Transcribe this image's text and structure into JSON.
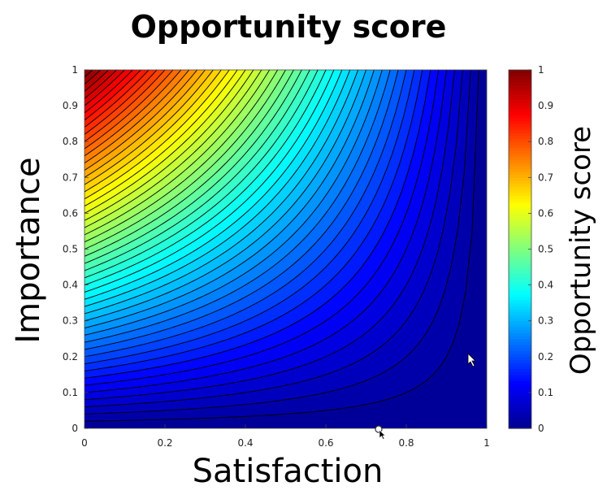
{
  "chart_data": {
    "type": "heatmap",
    "subtype": "filled-contour",
    "title": "Opportunity score",
    "xlabel": "Satisfaction",
    "ylabel": "Importance",
    "colorbar_label": "Opportunity score",
    "function": "importance * (1 - satisfaction)",
    "xlim": [
      0,
      1
    ],
    "ylim": [
      0,
      1
    ],
    "clim": [
      0,
      1
    ],
    "xticks": [
      0,
      0.2,
      0.4,
      0.6,
      0.8,
      1
    ],
    "xtick_labels": [
      "0",
      "0.2",
      "0.4",
      "0.6",
      "0.8",
      "1"
    ],
    "yticks": [
      0,
      0.1,
      0.2,
      0.3,
      0.4,
      0.5,
      0.6,
      0.7,
      0.8,
      0.9,
      1
    ],
    "ytick_labels": [
      "0",
      "0.1",
      "0.2",
      "0.3",
      "0.4",
      "0.5",
      "0.6",
      "0.7",
      "0.8",
      "0.9",
      "1"
    ],
    "colorbar_ticks": [
      0,
      0.1,
      0.2,
      0.3,
      0.4,
      0.5,
      0.6,
      0.7,
      0.8,
      0.9,
      1
    ],
    "colorbar_tick_labels": [
      "0",
      "0.1",
      "0.2",
      "0.3",
      "0.4",
      "0.5",
      "0.6",
      "0.7",
      "0.8",
      "0.9",
      "1"
    ],
    "contour_levels": [
      0.02,
      0.04,
      0.06,
      0.08,
      0.1,
      0.12,
      0.14,
      0.16,
      0.18,
      0.2,
      0.22,
      0.24,
      0.26,
      0.28,
      0.3,
      0.32,
      0.34,
      0.36,
      0.38,
      0.4,
      0.42,
      0.44,
      0.46,
      0.48,
      0.5,
      0.52,
      0.54,
      0.56,
      0.58,
      0.6,
      0.62,
      0.64,
      0.66,
      0.68,
      0.7,
      0.72,
      0.74,
      0.76,
      0.78,
      0.8,
      0.82,
      0.84,
      0.86,
      0.88,
      0.9,
      0.92,
      0.94,
      0.96,
      0.98
    ],
    "colormap": "jet",
    "colormap_stops": [
      "#00008f",
      "#0000ff",
      "#00ffff",
      "#ffff00",
      "#ff0000",
      "#800000"
    ],
    "grid": false,
    "legend": "colorbar-right"
  }
}
